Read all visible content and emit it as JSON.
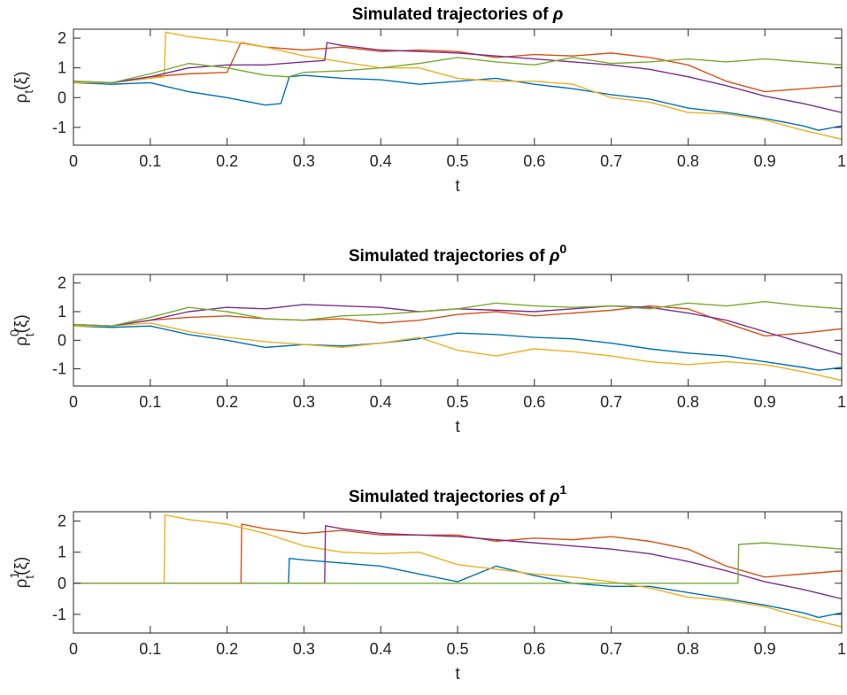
{
  "chart_data": [
    {
      "type": "line",
      "title": "Simulated trajectories of",
      "title_symbol": "ρ",
      "title_superscript": "",
      "xlabel": "t",
      "ylabel": {
        "symbol": "ρ",
        "superscript": "",
        "subscript": "t",
        "argument": "(ξ)"
      },
      "xlim": [
        0,
        1
      ],
      "ylim": [
        -1.6,
        2.3
      ],
      "xticks": [
        "0",
        "0.1",
        "0.2",
        "0.3",
        "0.4",
        "0.5",
        "0.6",
        "0.7",
        "0.8",
        "0.9",
        "1"
      ],
      "yticks": [
        "-1",
        "0",
        "1",
        "2"
      ],
      "grid": false,
      "series": [
        {
          "color": "#0072BD",
          "x": [
            0,
            0.05,
            0.1,
            0.15,
            0.2,
            0.25,
            0.27,
            0.281,
            0.3,
            0.35,
            0.4,
            0.45,
            0.5,
            0.55,
            0.6,
            0.65,
            0.7,
            0.75,
            0.8,
            0.85,
            0.9,
            0.95,
            0.97,
            1
          ],
          "y": [
            0.5,
            0.45,
            0.5,
            0.2,
            0.0,
            -0.25,
            -0.2,
            0.7,
            0.75,
            0.65,
            0.6,
            0.45,
            0.55,
            0.65,
            0.45,
            0.3,
            0.1,
            -0.05,
            -0.35,
            -0.5,
            -0.7,
            -0.95,
            -1.1,
            -0.95
          ]
        },
        {
          "color": "#D95319",
          "x": [
            0,
            0.05,
            0.1,
            0.15,
            0.2,
            0.218,
            0.25,
            0.3,
            0.35,
            0.4,
            0.45,
            0.5,
            0.55,
            0.6,
            0.65,
            0.7,
            0.75,
            0.8,
            0.85,
            0.9,
            0.95,
            1
          ],
          "y": [
            0.55,
            0.5,
            0.7,
            0.8,
            0.85,
            1.85,
            1.7,
            1.6,
            1.7,
            1.55,
            1.6,
            1.55,
            1.35,
            1.45,
            1.4,
            1.5,
            1.35,
            1.1,
            0.55,
            0.2,
            0.3,
            0.4
          ]
        },
        {
          "color": "#EDB120",
          "x": [
            0,
            0.05,
            0.1,
            0.118,
            0.12,
            0.15,
            0.2,
            0.25,
            0.3,
            0.35,
            0.4,
            0.45,
            0.5,
            0.55,
            0.6,
            0.65,
            0.7,
            0.75,
            0.8,
            0.85,
            0.9,
            0.95,
            1
          ],
          "y": [
            0.5,
            0.5,
            0.65,
            0.7,
            2.2,
            2.05,
            1.9,
            1.7,
            1.4,
            1.2,
            1.0,
            1.0,
            0.65,
            0.55,
            0.55,
            0.45,
            0.0,
            -0.15,
            -0.5,
            -0.55,
            -0.75,
            -1.1,
            -1.4
          ]
        },
        {
          "color": "#7E2F8E",
          "x": [
            0,
            0.05,
            0.1,
            0.15,
            0.2,
            0.25,
            0.3,
            0.327,
            0.33,
            0.35,
            0.4,
            0.45,
            0.5,
            0.55,
            0.6,
            0.65,
            0.7,
            0.75,
            0.8,
            0.85,
            0.9,
            0.95,
            1
          ],
          "y": [
            0.55,
            0.5,
            0.7,
            1.0,
            1.1,
            1.1,
            1.2,
            1.25,
            1.85,
            1.75,
            1.6,
            1.55,
            1.5,
            1.4,
            1.3,
            1.2,
            1.1,
            0.95,
            0.7,
            0.4,
            0.05,
            -0.2,
            -0.5
          ]
        },
        {
          "color": "#77AC30",
          "x": [
            0,
            0.05,
            0.1,
            0.15,
            0.2,
            0.25,
            0.28,
            0.3,
            0.35,
            0.4,
            0.45,
            0.5,
            0.55,
            0.6,
            0.65,
            0.7,
            0.75,
            0.8,
            0.85,
            0.9,
            0.95,
            1
          ],
          "y": [
            0.55,
            0.5,
            0.8,
            1.15,
            1.0,
            0.75,
            0.7,
            0.85,
            0.9,
            1.0,
            1.15,
            1.35,
            1.2,
            1.1,
            1.35,
            1.15,
            1.2,
            1.3,
            1.2,
            1.3,
            1.2,
            1.1
          ]
        }
      ]
    },
    {
      "type": "line",
      "title": "Simulated trajectories of",
      "title_symbol": "ρ",
      "title_superscript": "0",
      "xlabel": "t",
      "ylabel": {
        "symbol": "ρ",
        "superscript": "0",
        "subscript": "t",
        "argument": "(ξ)"
      },
      "xlim": [
        0,
        1
      ],
      "ylim": [
        -1.6,
        2.3
      ],
      "xticks": [
        "0",
        "0.1",
        "0.2",
        "0.3",
        "0.4",
        "0.5",
        "0.6",
        "0.7",
        "0.8",
        "0.9",
        "1"
      ],
      "yticks": [
        "-1",
        "0",
        "1",
        "2"
      ],
      "grid": false,
      "series": [
        {
          "color": "#0072BD",
          "x": [
            0,
            0.05,
            0.1,
            0.15,
            0.2,
            0.25,
            0.3,
            0.35,
            0.4,
            0.45,
            0.5,
            0.55,
            0.6,
            0.65,
            0.7,
            0.75,
            0.8,
            0.85,
            0.9,
            0.95,
            0.97,
            1
          ],
          "y": [
            0.5,
            0.45,
            0.5,
            0.2,
            0.0,
            -0.25,
            -0.15,
            -0.2,
            -0.1,
            0.05,
            0.25,
            0.2,
            0.1,
            0.05,
            -0.1,
            -0.3,
            -0.45,
            -0.55,
            -0.75,
            -0.95,
            -1.05,
            -0.95
          ]
        },
        {
          "color": "#D95319",
          "x": [
            0,
            0.05,
            0.1,
            0.15,
            0.2,
            0.25,
            0.3,
            0.35,
            0.4,
            0.45,
            0.5,
            0.55,
            0.6,
            0.65,
            0.7,
            0.75,
            0.8,
            0.85,
            0.9,
            0.95,
            1
          ],
          "y": [
            0.55,
            0.5,
            0.7,
            0.8,
            0.85,
            0.75,
            0.7,
            0.75,
            0.6,
            0.7,
            0.9,
            1.0,
            0.85,
            0.95,
            1.05,
            1.2,
            1.1,
            0.6,
            0.15,
            0.25,
            0.4
          ]
        },
        {
          "color": "#EDB120",
          "x": [
            0,
            0.05,
            0.1,
            0.15,
            0.2,
            0.25,
            0.3,
            0.35,
            0.4,
            0.45,
            0.5,
            0.55,
            0.6,
            0.65,
            0.7,
            0.75,
            0.8,
            0.85,
            0.9,
            0.95,
            1
          ],
          "y": [
            0.5,
            0.5,
            0.6,
            0.3,
            0.1,
            -0.05,
            -0.15,
            -0.25,
            -0.1,
            0.1,
            -0.35,
            -0.55,
            -0.3,
            -0.4,
            -0.55,
            -0.75,
            -0.85,
            -0.75,
            -0.85,
            -1.1,
            -1.4
          ]
        },
        {
          "color": "#7E2F8E",
          "x": [
            0,
            0.05,
            0.1,
            0.15,
            0.2,
            0.25,
            0.3,
            0.35,
            0.4,
            0.45,
            0.5,
            0.55,
            0.6,
            0.65,
            0.7,
            0.75,
            0.8,
            0.85,
            0.9,
            0.95,
            1
          ],
          "y": [
            0.55,
            0.5,
            0.7,
            1.0,
            1.15,
            1.1,
            1.25,
            1.2,
            1.15,
            1.0,
            1.1,
            1.05,
            1.0,
            1.1,
            1.2,
            1.15,
            0.95,
            0.7,
            0.3,
            -0.1,
            -0.5
          ]
        },
        {
          "color": "#77AC30",
          "x": [
            0,
            0.05,
            0.1,
            0.15,
            0.2,
            0.25,
            0.3,
            0.35,
            0.4,
            0.45,
            0.5,
            0.55,
            0.6,
            0.65,
            0.7,
            0.75,
            0.8,
            0.85,
            0.9,
            0.95,
            1
          ],
          "y": [
            0.55,
            0.5,
            0.8,
            1.15,
            1.0,
            0.75,
            0.7,
            0.85,
            0.9,
            1.0,
            1.1,
            1.3,
            1.2,
            1.15,
            1.2,
            1.1,
            1.3,
            1.2,
            1.35,
            1.2,
            1.1
          ]
        }
      ]
    },
    {
      "type": "line",
      "title": "Simulated trajectories of",
      "title_symbol": "ρ",
      "title_superscript": "1",
      "xlabel": "t",
      "ylabel": {
        "symbol": "ρ",
        "superscript": "1",
        "subscript": "t",
        "argument": "(ξ)"
      },
      "xlim": [
        0,
        1
      ],
      "ylim": [
        -1.6,
        2.3
      ],
      "xticks": [
        "0",
        "0.1",
        "0.2",
        "0.3",
        "0.4",
        "0.5",
        "0.6",
        "0.7",
        "0.8",
        "0.9",
        "1"
      ],
      "yticks": [
        "-1",
        "0",
        "1",
        "2"
      ],
      "grid": false,
      "series": [
        {
          "color": "#0072BD",
          "x": [
            0,
            0.28,
            0.281,
            0.3,
            0.35,
            0.4,
            0.45,
            0.5,
            0.55,
            0.6,
            0.65,
            0.7,
            0.75,
            0.8,
            0.85,
            0.9,
            0.95,
            0.97,
            1
          ],
          "y": [
            0,
            0,
            0.8,
            0.75,
            0.65,
            0.55,
            0.3,
            0.05,
            0.55,
            0.25,
            0.0,
            -0.1,
            -0.1,
            -0.3,
            -0.5,
            -0.7,
            -0.95,
            -1.1,
            -0.95
          ]
        },
        {
          "color": "#D95319",
          "x": [
            0,
            0.218,
            0.219,
            0.25,
            0.3,
            0.35,
            0.4,
            0.45,
            0.5,
            0.55,
            0.6,
            0.65,
            0.7,
            0.75,
            0.8,
            0.85,
            0.9,
            0.95,
            1
          ],
          "y": [
            0,
            0,
            1.9,
            1.75,
            1.6,
            1.7,
            1.55,
            1.55,
            1.55,
            1.35,
            1.45,
            1.4,
            1.5,
            1.35,
            1.1,
            0.55,
            0.2,
            0.3,
            0.4
          ]
        },
        {
          "color": "#EDB120",
          "x": [
            0,
            0.118,
            0.119,
            0.15,
            0.2,
            0.25,
            0.3,
            0.35,
            0.4,
            0.45,
            0.5,
            0.55,
            0.6,
            0.65,
            0.7,
            0.75,
            0.8,
            0.85,
            0.9,
            0.95,
            1
          ],
          "y": [
            0,
            0,
            2.2,
            2.05,
            1.9,
            1.6,
            1.2,
            1.0,
            0.95,
            1.0,
            0.6,
            0.45,
            0.3,
            0.2,
            0.05,
            -0.15,
            -0.45,
            -0.55,
            -0.75,
            -1.1,
            -1.4
          ]
        },
        {
          "color": "#7E2F8E",
          "x": [
            0,
            0.327,
            0.328,
            0.35,
            0.4,
            0.45,
            0.5,
            0.55,
            0.6,
            0.65,
            0.7,
            0.75,
            0.8,
            0.85,
            0.9,
            0.95,
            1
          ],
          "y": [
            0,
            0,
            1.85,
            1.75,
            1.6,
            1.55,
            1.5,
            1.4,
            1.3,
            1.2,
            1.1,
            0.95,
            0.7,
            0.4,
            0.05,
            -0.2,
            -0.5
          ]
        },
        {
          "color": "#77AC30",
          "x": [
            0,
            0.865,
            0.866,
            0.9,
            0.95,
            1
          ],
          "y": [
            0,
            0,
            1.25,
            1.3,
            1.2,
            1.1
          ]
        }
      ]
    }
  ]
}
